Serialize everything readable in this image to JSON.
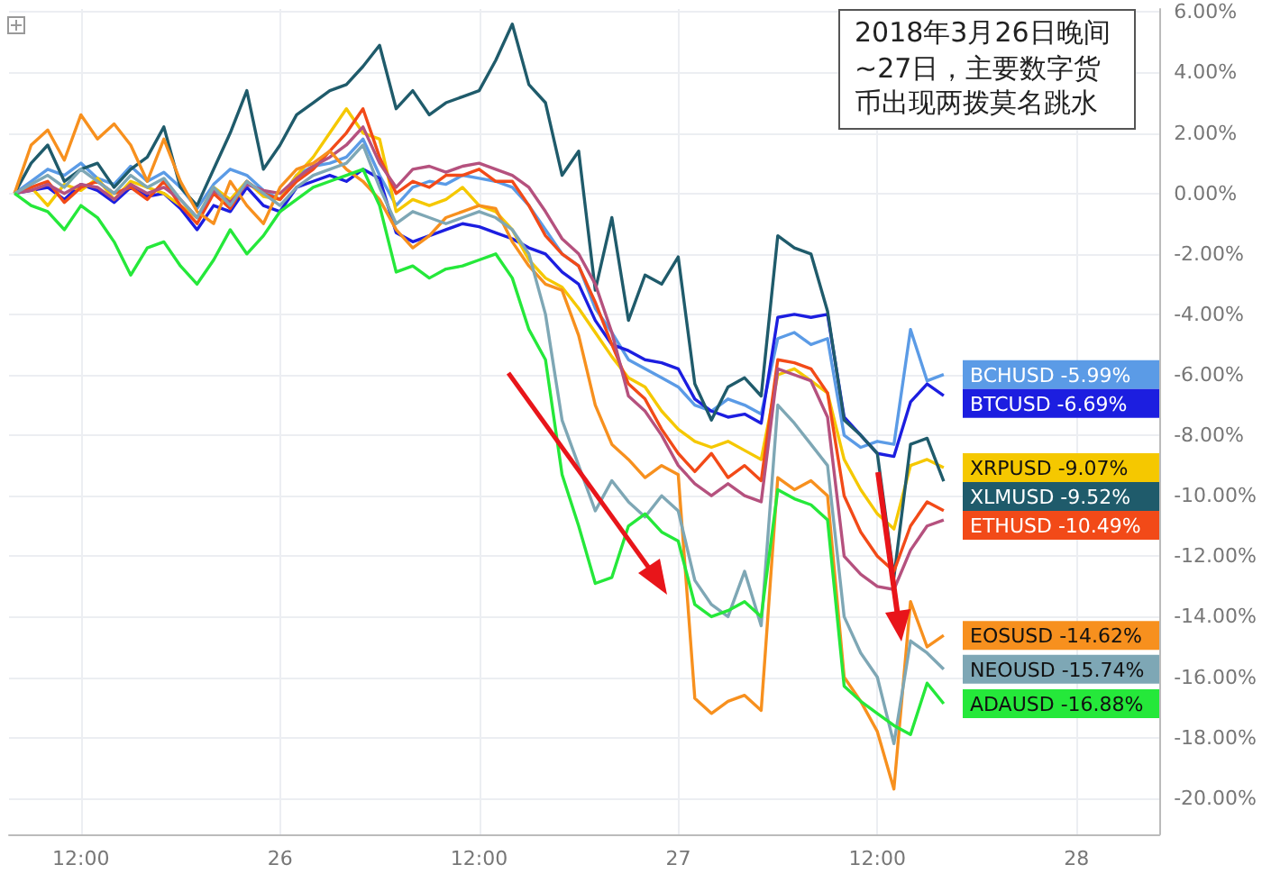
{
  "chart_data": {
    "type": "line",
    "annotations": [
      "2018年3月26日晚间~27日，主要数字货币出现两拨莫名跳水"
    ],
    "x": [
      "2018-03-25T08:00",
      "2018-03-25T09:00",
      "2018-03-25T10:00",
      "2018-03-25T11:00",
      "2018-03-25T12:00",
      "2018-03-25T13:00",
      "2018-03-25T14:00",
      "2018-03-25T15:00",
      "2018-03-25T16:00",
      "2018-03-25T17:00",
      "2018-03-25T18:00",
      "2018-03-25T19:00",
      "2018-03-25T20:00",
      "2018-03-25T21:00",
      "2018-03-25T22:00",
      "2018-03-25T23:00",
      "2018-03-26T00:00",
      "2018-03-26T01:00",
      "2018-03-26T02:00",
      "2018-03-26T03:00",
      "2018-03-26T04:00",
      "2018-03-26T05:00",
      "2018-03-26T06:00",
      "2018-03-26T07:00",
      "2018-03-26T08:00",
      "2018-03-26T09:00",
      "2018-03-26T10:00",
      "2018-03-26T11:00",
      "2018-03-26T12:00",
      "2018-03-26T13:00",
      "2018-03-26T14:00",
      "2018-03-26T15:00",
      "2018-03-26T16:00",
      "2018-03-26T17:00",
      "2018-03-26T18:00",
      "2018-03-26T19:00",
      "2018-03-26T20:00",
      "2018-03-26T21:00",
      "2018-03-26T22:00",
      "2018-03-26T23:00",
      "2018-03-27T00:00",
      "2018-03-27T01:00",
      "2018-03-27T02:00",
      "2018-03-27T03:00",
      "2018-03-27T04:00",
      "2018-03-27T05:00",
      "2018-03-27T06:00",
      "2018-03-27T07:00",
      "2018-03-27T08:00",
      "2018-03-27T09:00",
      "2018-03-27T10:00",
      "2018-03-27T11:00",
      "2018-03-27T12:00",
      "2018-03-27T13:00",
      "2018-03-27T14:00",
      "2018-03-27T15:00",
      "2018-03-27T16:00"
    ],
    "series": [
      {
        "name": "BCHUSD",
        "color": "#5b9be6",
        "values": [
          0,
          0.4,
          0.8,
          0.6,
          1.0,
          0.5,
          0.3,
          0.9,
          0.4,
          0.7,
          0.2,
          -0.5,
          0.3,
          0.8,
          0.6,
          0.1,
          -0.2,
          0.6,
          0.9,
          1.0,
          1.2,
          1.8,
          0.6,
          -0.4,
          0.2,
          0.4,
          0.3,
          0.6,
          0.5,
          0.4,
          0.2,
          -0.4,
          -1.2,
          -2.0,
          -2.4,
          -3.8,
          -4.6,
          -5.5,
          -5.8,
          -6.1,
          -6.4,
          -7.0,
          -7.2,
          -6.8,
          -7.0,
          -7.3,
          -4.8,
          -4.6,
          -5.0,
          -4.8,
          -8.0,
          -8.4,
          -8.2,
          -8.3,
          -4.5,
          -6.2,
          -5.99
        ],
        "value_labels": [
          null,
          null,
          null,
          null,
          null,
          null,
          null,
          null,
          null,
          null,
          null,
          null,
          null,
          null,
          null,
          null,
          null,
          null,
          null,
          null,
          null,
          null,
          null,
          null,
          null,
          null,
          null,
          null,
          null,
          null,
          null,
          null,
          null,
          null,
          null,
          null,
          null,
          null,
          null,
          null,
          null,
          null,
          null,
          null,
          null,
          null,
          null,
          null,
          null,
          null,
          null,
          null,
          null,
          null,
          null,
          null,
          "-5.99%"
        ]
      },
      {
        "name": "BTCUSD",
        "color": "#1c1ee0",
        "values": [
          0,
          0.1,
          0.2,
          -0.2,
          0.3,
          0.1,
          -0.3,
          0.2,
          -0.1,
          0.0,
          -0.5,
          -1.2,
          -0.4,
          -0.6,
          0.2,
          -0.4,
          -0.6,
          0.2,
          0.4,
          0.6,
          0.4,
          0.8,
          0.5,
          -1.3,
          -1.6,
          -1.4,
          -1.2,
          -1.0,
          -1.1,
          -1.3,
          -1.5,
          -1.8,
          -2.0,
          -2.6,
          -3.0,
          -4.2,
          -5.0,
          -5.2,
          -5.5,
          -5.6,
          -5.8,
          -6.8,
          -7.2,
          -7.4,
          -7.3,
          -7.6,
          -4.1,
          -4.0,
          -4.1,
          -4.0,
          -7.4,
          -8.0,
          -8.6,
          -8.7,
          -6.9,
          -6.3,
          -6.69
        ],
        "value_labels": [
          null,
          null,
          null,
          null,
          null,
          null,
          null,
          null,
          null,
          null,
          null,
          null,
          null,
          null,
          null,
          null,
          null,
          null,
          null,
          null,
          null,
          null,
          null,
          null,
          null,
          null,
          null,
          null,
          null,
          null,
          null,
          null,
          null,
          null,
          null,
          null,
          null,
          null,
          null,
          null,
          null,
          null,
          null,
          null,
          null,
          null,
          null,
          null,
          null,
          null,
          null,
          null,
          null,
          null,
          null,
          null,
          "-6.69%"
        ]
      },
      {
        "name": "XRPUSD",
        "color": "#f5c800",
        "values": [
          0,
          0.2,
          -0.4,
          0.3,
          0.1,
          0.5,
          -0.2,
          0.4,
          0.2,
          0.0,
          -0.4,
          -0.8,
          0.2,
          -0.2,
          0.4,
          -0.1,
          -0.2,
          0.6,
          1.2,
          2.0,
          2.8,
          2.0,
          1.8,
          -0.6,
          -0.2,
          -0.4,
          -0.2,
          0.2,
          -0.4,
          -0.6,
          -1.2,
          -2.2,
          -2.8,
          -3.1,
          -3.8,
          -4.6,
          -5.4,
          -6.1,
          -6.4,
          -7.2,
          -7.8,
          -8.2,
          -8.4,
          -8.2,
          -8.5,
          -8.8,
          -6.0,
          -5.8,
          -6.2,
          -6.6,
          -8.8,
          -9.8,
          -10.6,
          -11.1,
          -9.0,
          -8.8,
          -9.07
        ],
        "value_labels": [
          null,
          null,
          null,
          null,
          null,
          null,
          null,
          null,
          null,
          null,
          null,
          null,
          null,
          null,
          null,
          null,
          null,
          null,
          null,
          null,
          null,
          null,
          null,
          null,
          null,
          null,
          null,
          null,
          null,
          null,
          null,
          null,
          null,
          null,
          null,
          null,
          null,
          null,
          null,
          null,
          null,
          null,
          null,
          null,
          null,
          null,
          null,
          null,
          null,
          null,
          null,
          null,
          null,
          null,
          null,
          null,
          "-9.07%"
        ]
      },
      {
        "name": "XLMUSD",
        "color": "#1f5b6b",
        "values": [
          0,
          1.0,
          1.6,
          0.4,
          0.8,
          1.0,
          0.2,
          0.8,
          1.2,
          2.2,
          0.2,
          -0.4,
          0.8,
          2.0,
          3.4,
          0.8,
          1.6,
          2.6,
          3.0,
          3.4,
          3.6,
          4.2,
          4.9,
          2.8,
          3.4,
          2.6,
          3.0,
          3.2,
          3.4,
          4.4,
          5.6,
          3.6,
          3.0,
          0.6,
          1.4,
          -3.2,
          -0.8,
          -4.2,
          -2.7,
          -3.0,
          -2.1,
          -6.3,
          -7.5,
          -6.4,
          -6.1,
          -6.7,
          -1.4,
          -1.8,
          -2.0,
          -3.9,
          -7.5,
          -8.0,
          -8.6,
          -12.7,
          -8.3,
          -8.1,
          -9.52
        ],
        "value_labels": [
          null,
          null,
          null,
          null,
          null,
          null,
          null,
          null,
          null,
          null,
          null,
          null,
          null,
          null,
          null,
          null,
          null,
          null,
          null,
          null,
          null,
          null,
          null,
          null,
          null,
          null,
          null,
          null,
          null,
          null,
          null,
          null,
          null,
          null,
          null,
          null,
          null,
          null,
          null,
          null,
          null,
          null,
          null,
          null,
          null,
          null,
          null,
          null,
          null,
          null,
          null,
          null,
          null,
          null,
          null,
          null,
          "-9.52%"
        ]
      },
      {
        "name": "ETHUSD",
        "color": "#f24a18",
        "values": [
          0,
          0.2,
          0.4,
          -0.3,
          0.2,
          0.4,
          0.0,
          0.2,
          -0.2,
          0.4,
          -0.4,
          -1.0,
          0.0,
          -0.5,
          0.4,
          0.0,
          -0.2,
          0.4,
          0.8,
          1.4,
          2.0,
          2.8,
          1.2,
          0.0,
          0.4,
          0.2,
          0.6,
          0.6,
          0.8,
          0.4,
          0.4,
          -0.4,
          -1.4,
          -2.0,
          -2.4,
          -3.6,
          -5.0,
          -6.3,
          -6.8,
          -7.8,
          -8.6,
          -9.2,
          -8.6,
          -9.4,
          -9.0,
          -9.5,
          -5.5,
          -5.6,
          -5.8,
          -6.6,
          -10.0,
          -11.2,
          -12.0,
          -12.5,
          -11.0,
          -10.2,
          -10.49
        ],
        "value_labels": [
          null,
          null,
          null,
          null,
          null,
          null,
          null,
          null,
          null,
          null,
          null,
          null,
          null,
          null,
          null,
          null,
          null,
          null,
          null,
          null,
          null,
          null,
          null,
          null,
          null,
          null,
          null,
          null,
          null,
          null,
          null,
          null,
          null,
          null,
          null,
          null,
          null,
          null,
          null,
          null,
          null,
          null,
          null,
          null,
          null,
          null,
          null,
          null,
          null,
          null,
          null,
          null,
          null,
          null,
          null,
          null,
          "-10.49%"
        ]
      },
      {
        "color": "#b5517e",
        "values": [
          0,
          0.1,
          0.3,
          0.0,
          0.3,
          0.2,
          -0.2,
          0.3,
          0.0,
          0.2,
          -0.2,
          -0.8,
          0.1,
          -0.3,
          0.3,
          0.1,
          0.0,
          0.5,
          0.9,
          1.2,
          1.6,
          2.2,
          1.0,
          0.2,
          0.8,
          0.9,
          0.7,
          0.9,
          1.0,
          0.8,
          0.6,
          0.2,
          -0.6,
          -1.5,
          -2.0,
          -3.0,
          -4.6,
          -6.7,
          -7.2,
          -8.0,
          -9.0,
          -9.6,
          -10.0,
          -9.6,
          -10.0,
          -10.2,
          -5.8,
          -6.0,
          -6.2,
          -7.4,
          -12.0,
          -12.6,
          -13.0,
          -13.1,
          -11.8,
          -11.0,
          -10.8
        ]
      },
      {
        "name": "EOSUSD",
        "color": "#f7901e",
        "values": [
          0,
          1.6,
          2.1,
          1.1,
          2.6,
          1.8,
          2.3,
          1.6,
          0.4,
          1.8,
          0.4,
          -0.6,
          -1.0,
          0.4,
          -0.4,
          -1.0,
          0.2,
          0.8,
          1.0,
          1.4,
          0.8,
          0.4,
          -0.2,
          -1.2,
          -1.8,
          -1.4,
          -0.8,
          -0.6,
          -0.4,
          -0.5,
          -1.6,
          -2.4,
          -3.0,
          -3.2,
          -4.7,
          -7.0,
          -8.3,
          -8.8,
          -9.4,
          -9.0,
          -9.3,
          -16.7,
          -17.2,
          -16.8,
          -16.6,
          -17.1,
          -9.4,
          -9.8,
          -9.5,
          -10.0,
          -16.0,
          -16.8,
          -17.8,
          -19.7,
          -13.5,
          -15.0,
          -14.62
        ],
        "value_labels": [
          null,
          null,
          null,
          null,
          null,
          null,
          null,
          null,
          null,
          null,
          null,
          null,
          null,
          null,
          null,
          null,
          null,
          null,
          null,
          null,
          null,
          null,
          null,
          null,
          null,
          null,
          null,
          null,
          null,
          null,
          null,
          null,
          null,
          null,
          null,
          null,
          null,
          null,
          null,
          null,
          null,
          null,
          null,
          null,
          null,
          null,
          null,
          null,
          null,
          null,
          null,
          null,
          null,
          null,
          null,
          null,
          "-14.62%"
        ]
      },
      {
        "name": "NEOUSD",
        "color": "#7ea7b5",
        "values": [
          0,
          0.3,
          0.6,
          0.2,
          0.8,
          0.4,
          0.0,
          0.6,
          0.2,
          0.5,
          -0.2,
          -0.8,
          0.2,
          -0.4,
          0.4,
          0.0,
          -0.4,
          0.2,
          0.6,
          0.8,
          1.0,
          1.6,
          0.2,
          -1.0,
          -0.6,
          -0.8,
          -1.0,
          -0.8,
          -0.6,
          -0.8,
          -1.2,
          -2.0,
          -4.0,
          -7.5,
          -9.0,
          -10.5,
          -9.5,
          -10.2,
          -10.7,
          -10.0,
          -10.5,
          -12.8,
          -13.6,
          -14.0,
          -12.5,
          -14.3,
          -7.0,
          -7.6,
          -8.3,
          -9.0,
          -14.0,
          -15.2,
          -16.0,
          -18.2,
          -14.8,
          -15.2,
          -15.74
        ],
        "value_labels": [
          null,
          null,
          null,
          null,
          null,
          null,
          null,
          null,
          null,
          null,
          null,
          null,
          null,
          null,
          null,
          null,
          null,
          null,
          null,
          null,
          null,
          null,
          null,
          null,
          null,
          null,
          null,
          null,
          null,
          null,
          null,
          null,
          null,
          null,
          null,
          null,
          null,
          null,
          null,
          null,
          null,
          null,
          null,
          null,
          null,
          null,
          null,
          null,
          null,
          null,
          null,
          null,
          null,
          null,
          null,
          null,
          "-15.74%"
        ]
      },
      {
        "name": "ADAUSD",
        "color": "#25e83a",
        "values": [
          0,
          -0.4,
          -0.6,
          -1.2,
          -0.4,
          -0.8,
          -1.6,
          -2.7,
          -1.8,
          -1.6,
          -2.4,
          -3.0,
          -2.2,
          -1.2,
          -2.0,
          -1.4,
          -0.6,
          -0.2,
          0.2,
          0.4,
          0.6,
          0.8,
          -0.4,
          -2.6,
          -2.4,
          -2.8,
          -2.5,
          -2.4,
          -2.2,
          -2.0,
          -2.8,
          -4.5,
          -5.5,
          -9.3,
          -11.0,
          -12.9,
          -12.7,
          -11.0,
          -10.6,
          -11.2,
          -11.5,
          -13.6,
          -14.0,
          -13.8,
          -13.5,
          -14.0,
          -9.8,
          -10.1,
          -10.3,
          -10.8,
          -16.3,
          -16.8,
          -17.2,
          -17.6,
          -17.9,
          -16.2,
          -16.88
        ],
        "value_labels": [
          null,
          null,
          null,
          null,
          null,
          null,
          null,
          null,
          null,
          null,
          null,
          null,
          null,
          null,
          null,
          null,
          null,
          null,
          null,
          null,
          null,
          null,
          null,
          null,
          null,
          null,
          null,
          null,
          null,
          null,
          null,
          null,
          null,
          null,
          null,
          null,
          null,
          null,
          null,
          null,
          null,
          null,
          null,
          null,
          null,
          null,
          null,
          null,
          null,
          null,
          null,
          null,
          null,
          null,
          null,
          null,
          "-16.88%"
        ]
      }
    ],
    "xlim": [
      "2018-03-25T07:40",
      "2018-03-28T05:00"
    ],
    "xticks": [
      {
        "value": "2018-03-25T12:00",
        "label": "12:00"
      },
      {
        "value": "2018-03-26T00:00",
        "label": "26"
      },
      {
        "value": "2018-03-26T12:00",
        "label": "12:00"
      },
      {
        "value": "2018-03-27T00:00",
        "label": "27"
      },
      {
        "value": "2018-03-27T12:00",
        "label": "12:00"
      },
      {
        "value": "2018-03-28T00:00",
        "label": "28"
      }
    ],
    "ylim": [
      -21.2,
      6.1
    ],
    "yticks": [
      {
        "value": -20,
        "label": "-20.00%"
      },
      {
        "value": -18,
        "label": "-18.00%"
      },
      {
        "value": -16,
        "label": "-16.00%"
      },
      {
        "value": -14,
        "label": "-14.00%"
      },
      {
        "value": -12,
        "label": "-12.00%"
      },
      {
        "value": -10,
        "label": "-10.00%"
      },
      {
        "value": -8,
        "label": "-8.00%"
      },
      {
        "value": -6,
        "label": "-6.00%"
      },
      {
        "value": -4,
        "label": "-4.00%"
      },
      {
        "value": -2,
        "label": "-2.00%"
      },
      {
        "value": 0,
        "label": "0.00%"
      },
      {
        "value": 2,
        "label": "2.00%"
      },
      {
        "value": 4,
        "label": "4.00%"
      },
      {
        "value": 6,
        "label": "6.00%"
      }
    ],
    "grid": true
  }
}
